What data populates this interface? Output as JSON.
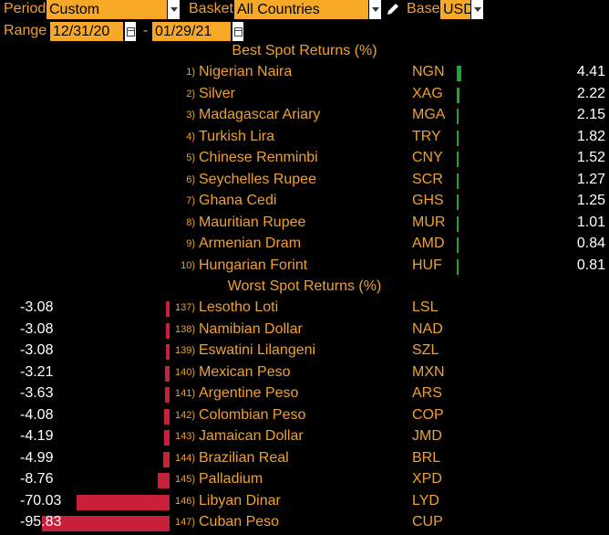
{
  "header": {
    "period_label": "Period",
    "period_value": "Custom",
    "basket_label": "Basket",
    "basket_value": "All Countries",
    "base_label": "Base",
    "base_value": "USD",
    "range_label": "Range",
    "range_start": "12/31/20",
    "range_sep": "-",
    "range_end": "01/29/21"
  },
  "best": {
    "title": "Best Spot Returns (%)",
    "rows": [
      {
        "rank": "1)",
        "name": "Nigerian Naira",
        "code": "NGN",
        "value": "4.41"
      },
      {
        "rank": "2)",
        "name": "Silver",
        "code": "XAG",
        "value": "2.22"
      },
      {
        "rank": "3)",
        "name": "Madagascar Ariary",
        "code": "MGA",
        "value": "2.15"
      },
      {
        "rank": "4)",
        "name": "Turkish Lira",
        "code": "TRY",
        "value": "1.82"
      },
      {
        "rank": "5)",
        "name": "Chinese Renminbi",
        "code": "CNY",
        "value": "1.52"
      },
      {
        "rank": "6)",
        "name": "Seychelles Rupee",
        "code": "SCR",
        "value": "1.27"
      },
      {
        "rank": "7)",
        "name": "Ghana Cedi",
        "code": "GHS",
        "value": "1.25"
      },
      {
        "rank": "8)",
        "name": "Mauritian Rupee",
        "code": "MUR",
        "value": "1.01"
      },
      {
        "rank": "9)",
        "name": "Armenian Dram",
        "code": "AMD",
        "value": "0.84"
      },
      {
        "rank": "10)",
        "name": "Hungarian Forint",
        "code": "HUF",
        "value": "0.81"
      }
    ]
  },
  "worst": {
    "title": "Worst Spot Returns (%)",
    "rows": [
      {
        "rank": "137)",
        "name": "Lesotho Loti",
        "code": "LSL",
        "value": "-3.08"
      },
      {
        "rank": "138)",
        "name": "Namibian Dollar",
        "code": "NAD",
        "value": "-3.08"
      },
      {
        "rank": "139)",
        "name": "Eswatini Lilangeni",
        "code": "SZL",
        "value": "-3.08"
      },
      {
        "rank": "140)",
        "name": "Mexican Peso",
        "code": "MXN",
        "value": "-3.21"
      },
      {
        "rank": "141)",
        "name": "Argentine Peso",
        "code": "ARS",
        "value": "-3.63"
      },
      {
        "rank": "142)",
        "name": "Colombian Peso",
        "code": "COP",
        "value": "-4.08"
      },
      {
        "rank": "143)",
        "name": "Jamaican Dollar",
        "code": "JMD",
        "value": "-4.19"
      },
      {
        "rank": "144)",
        "name": "Brazilian Real",
        "code": "BRL",
        "value": "-4.99"
      },
      {
        "rank": "145)",
        "name": "Palladium",
        "code": "XPD",
        "value": "-8.76"
      },
      {
        "rank": "146)",
        "name": "Libyan Dinar",
        "code": "LYD",
        "value": "-70.03"
      },
      {
        "rank": "147)",
        "name": "Cuban Peso",
        "code": "CUP",
        "value": "-95.83"
      }
    ]
  },
  "colors": {
    "accent": "#f0a030",
    "positive_bar": "#1fa531",
    "negative_bar": "#c8203a",
    "field_bg": "#f7a826"
  },
  "icons": {
    "pencil": "pencil-icon",
    "calendar": "calendar-icon",
    "dropdown": "chevron-down-icon"
  }
}
